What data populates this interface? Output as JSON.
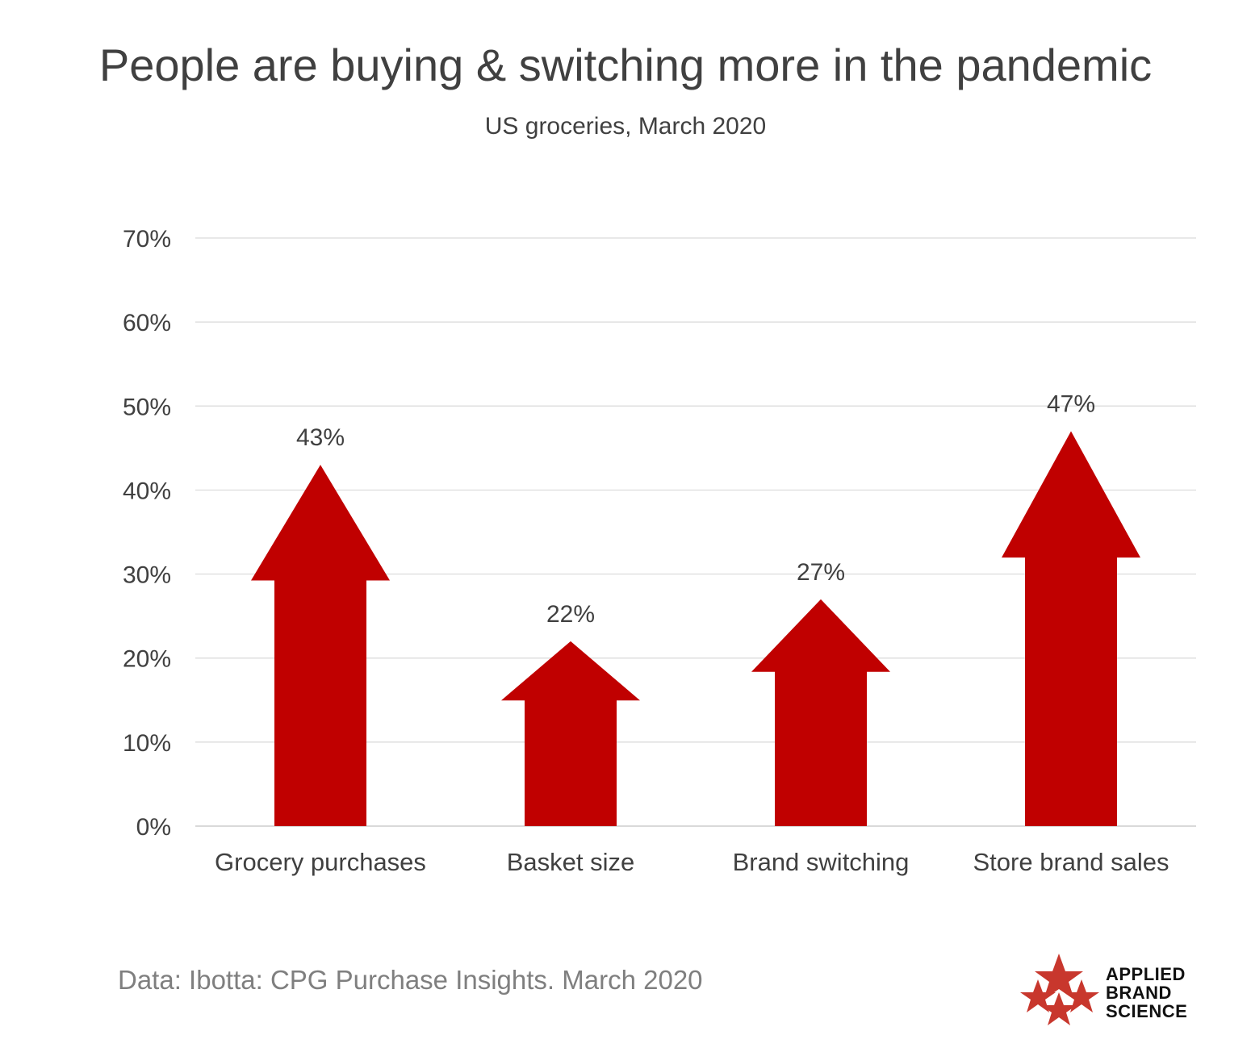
{
  "title": "People are buying & switching more in the pandemic",
  "subtitle": "US groceries, March 2020",
  "source": "Data: Ibotta: CPG Purchase Insights. March 2020",
  "logo": {
    "line1": "APPLIED",
    "line2": "BRAND",
    "line3": "SCIENCE",
    "icon": "stars-cluster-icon"
  },
  "colors": {
    "arrow": "#c00000",
    "logo_star": "#c8372d",
    "grid": "#d9d9d9"
  },
  "chart_data": {
    "type": "bar",
    "mark": "up-arrow",
    "categories": [
      "Grocery purchases",
      "Basket size",
      "Brand switching",
      "Store brand sales"
    ],
    "values": [
      43,
      22,
      27,
      47
    ],
    "value_labels": [
      "43%",
      "22%",
      "27%",
      "47%"
    ],
    "ylim": [
      0,
      70
    ],
    "yticks": [
      0,
      10,
      20,
      30,
      40,
      50,
      60,
      70
    ],
    "ytick_labels": [
      "0%",
      "10%",
      "20%",
      "30%",
      "40%",
      "50%",
      "60%",
      "70%"
    ],
    "grid": true,
    "legend": "none"
  }
}
